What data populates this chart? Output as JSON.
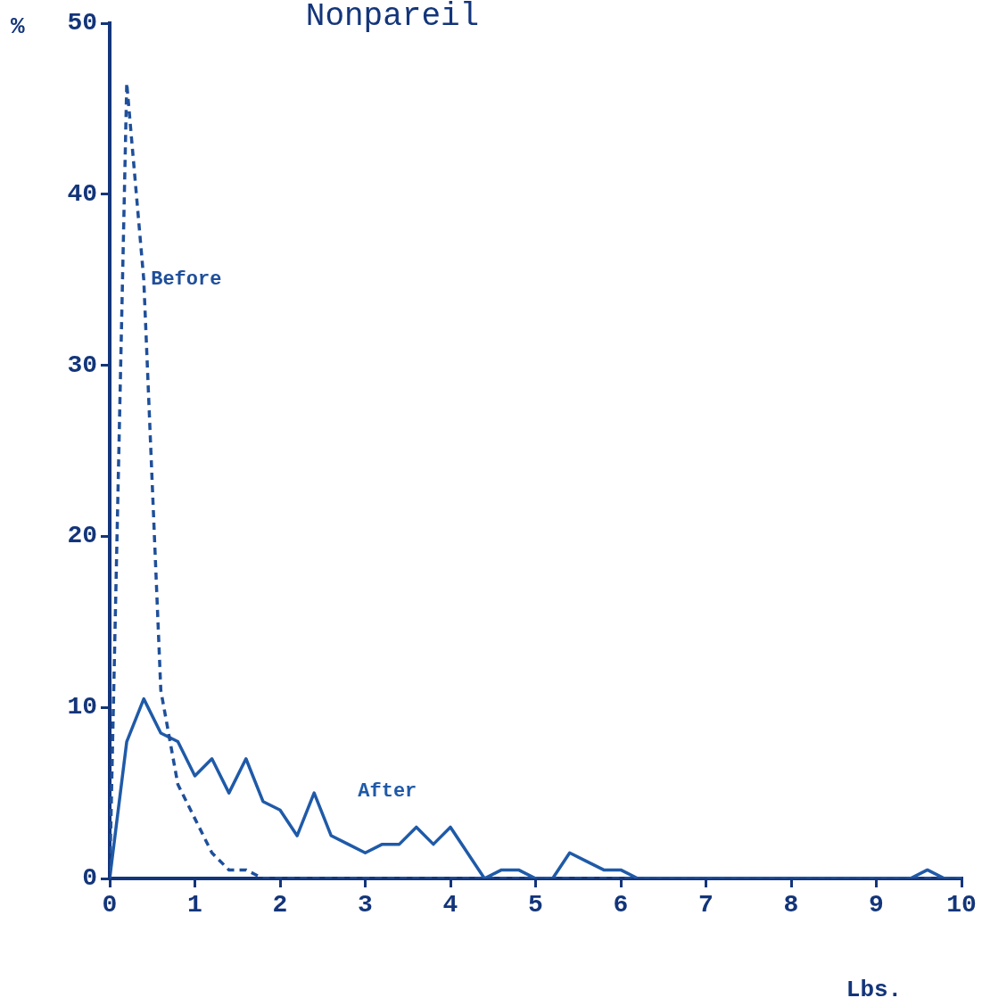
{
  "chart_data": {
    "type": "line",
    "title": "Nonpareil",
    "xlabel": "Lbs.",
    "ylabel": "%",
    "x": [
      0,
      0.2,
      0.4,
      0.6,
      0.8,
      1,
      1.2,
      1.4,
      1.6,
      1.8,
      2,
      2.2,
      2.4,
      2.6,
      2.8,
      3,
      3.2,
      3.4,
      3.6,
      3.8,
      4,
      4.2,
      4.4,
      4.6,
      4.8,
      5,
      5.2,
      5.4,
      5.6,
      5.8,
      6,
      6.2,
      6.4,
      6.6,
      6.8,
      7,
      7.2,
      7.4,
      7.6,
      7.8,
      8,
      8.2,
      8.4,
      8.6,
      8.8,
      9,
      9.2,
      9.4,
      9.6,
      9.8,
      10
    ],
    "series": [
      {
        "name": "Before",
        "color": "#1f4f9a",
        "line_style": "dashed",
        "values": [
          0,
          46.5,
          35,
          11,
          5.5,
          3.5,
          1.5,
          0.5,
          0.5,
          0,
          0,
          0,
          0,
          0,
          0,
          0,
          0,
          0,
          0,
          0,
          0,
          0,
          0,
          0,
          0,
          0,
          0,
          0,
          0,
          0,
          0,
          0,
          0,
          0,
          0,
          0,
          0,
          0,
          0,
          0,
          0,
          0,
          0,
          0,
          0,
          0,
          0,
          0,
          0,
          0,
          0
        ]
      },
      {
        "name": "After",
        "color": "#1f5aa8",
        "line_style": "solid",
        "values": [
          0,
          8,
          10.5,
          8.5,
          8,
          6,
          7,
          5,
          7,
          4.5,
          4,
          2.5,
          5,
          2.5,
          2,
          1.5,
          2,
          2,
          3,
          2,
          3,
          1.5,
          0,
          0.5,
          0.5,
          0,
          0,
          1.5,
          1,
          0.5,
          0.5,
          0,
          0,
          0,
          0,
          0,
          0,
          0,
          0,
          0,
          0,
          0,
          0,
          0,
          0,
          0,
          0,
          0,
          0.5,
          0,
          0
        ]
      }
    ],
    "xlim": [
      0,
      10
    ],
    "xticks": [
      0,
      1,
      2,
      3,
      4,
      5,
      6,
      7,
      8,
      9,
      10
    ],
    "ylim": [
      0,
      50
    ],
    "yticks": [
      0,
      10,
      20,
      30,
      40,
      50
    ],
    "grid": false,
    "legend": false,
    "marker": "none"
  }
}
